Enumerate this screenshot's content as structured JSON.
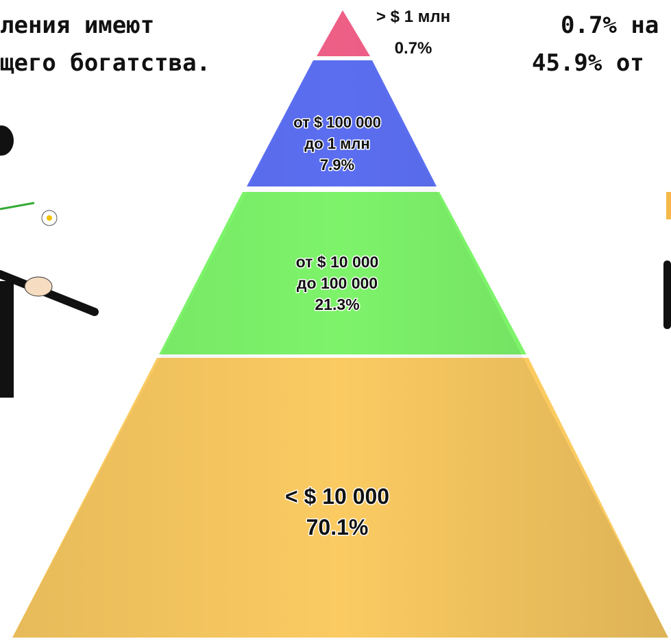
{
  "header": {
    "left": [
      "ления имеют",
      "щего богатства."
    ],
    "right": [
      "0.7% на",
      "45.9% от"
    ]
  },
  "pyramid": {
    "tiers": [
      {
        "lines": [
          "> $ 1 млн",
          "0.7%"
        ]
      },
      {
        "lines": [
          "от $ 100 000",
          "до 1 млн",
          "7.9%"
        ]
      },
      {
        "lines": [
          "от $ 10 000",
          "до 100 000",
          "21.3%"
        ]
      },
      {
        "lines": [
          "< $ 10 000",
          "70.1%"
        ]
      }
    ]
  }
}
